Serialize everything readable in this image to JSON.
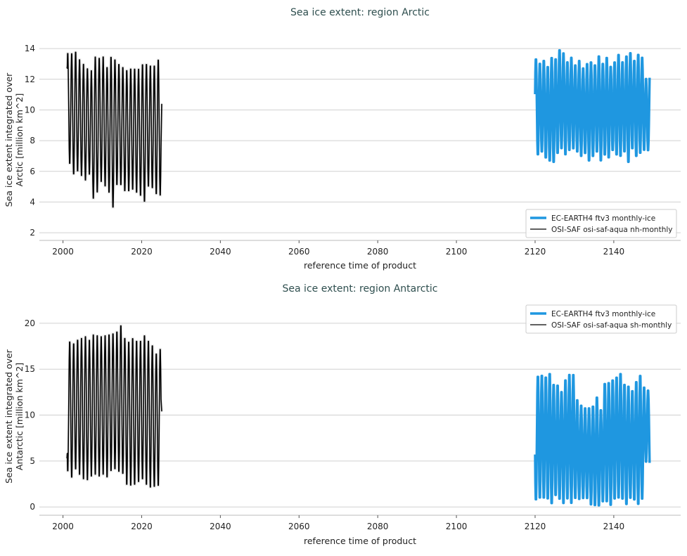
{
  "chart_data": [
    {
      "type": "line",
      "title": "Sea ice extent: region Arctic",
      "xlabel": "reference time of product",
      "ylabel_lines": [
        "Sea ice extent integrated over",
        "Arctic [million km^2]"
      ],
      "xlim": [
        1994,
        2157
      ],
      "ylim": [
        1.5,
        14.6
      ],
      "xticks": [
        2000,
        2020,
        2040,
        2060,
        2080,
        2100,
        2120,
        2140
      ],
      "yticks": [
        2,
        4,
        6,
        8,
        10,
        12,
        14
      ],
      "grid": "horizontal",
      "legend_position": "bottom-right",
      "hemisphere": "north",
      "series": [
        {
          "name": "EC-EARTH4 ftv3 monthly-ice",
          "color": "#1f97e0",
          "start_year": 2120,
          "end_value": 12.1,
          "annual_max": [
            13.4,
            13.1,
            13.3,
            12.9,
            13.5,
            13.4,
            14.0,
            13.8,
            13.2,
            13.5,
            13.0,
            13.3,
            12.8,
            13.1,
            13.2,
            13.0,
            13.6,
            13.1,
            13.5,
            12.9,
            13.2,
            13.7,
            13.2,
            13.6,
            13.8,
            13.3,
            13.7,
            13.5,
            12.1
          ],
          "annual_min": [
            7.0,
            7.2,
            6.8,
            6.6,
            6.5,
            7.1,
            7.4,
            7.0,
            7.3,
            7.4,
            7.2,
            6.9,
            7.1,
            6.6,
            6.9,
            7.2,
            6.6,
            7.0,
            6.8,
            7.3,
            7.0,
            6.9,
            7.2,
            6.5,
            7.4,
            6.9,
            7.1,
            7.3,
            7.3
          ]
        },
        {
          "name": "OSI-SAF osi-saf-aqua nh-monthly",
          "color": "#000000",
          "start_year": 2001,
          "start_value": 12.8,
          "end_value": 10.4,
          "annual_max": [
            13.8,
            13.8,
            13.9,
            13.4,
            13.1,
            12.8,
            12.7,
            13.6,
            13.5,
            13.6,
            12.9,
            13.6,
            13.4,
            13.1,
            12.9,
            12.7,
            12.8,
            12.8,
            12.8,
            13.1,
            13.1,
            13.0,
            13.0,
            13.4
          ],
          "annual_min": [
            6.4,
            5.7,
            5.9,
            5.6,
            5.3,
            5.7,
            4.1,
            4.5,
            5.2,
            4.9,
            4.5,
            3.5,
            5.0,
            5.0,
            4.6,
            4.6,
            4.7,
            4.5,
            4.3,
            3.9,
            4.9,
            4.8,
            4.4,
            4.3
          ]
        }
      ]
    },
    {
      "type": "line",
      "title": "Sea ice extent: region Antarctic",
      "xlabel": "reference time of product",
      "ylabel_lines": [
        "Sea ice extent integrated over",
        "Antarctic [million km^2]"
      ],
      "xlim": [
        1994,
        2157
      ],
      "ylim": [
        -0.9,
        20.6
      ],
      "xticks": [
        2000,
        2020,
        2040,
        2060,
        2080,
        2100,
        2120,
        2140
      ],
      "yticks": [
        0,
        5,
        10,
        15,
        20
      ],
      "grid": "horizontal",
      "legend_position": "top-right",
      "hemisphere": "south",
      "series": [
        {
          "name": "EC-EARTH4 ftv3 monthly-ice",
          "color": "#1f97e0",
          "start_year": 2120,
          "end_value": 4.8,
          "annual_max": [
            14.4,
            14.5,
            14.3,
            14.7,
            13.5,
            13.4,
            12.7,
            14.0,
            14.6,
            14.6,
            11.8,
            11.2,
            10.9,
            10.9,
            11.1,
            12.1,
            10.7,
            13.6,
            13.7,
            14.0,
            14.3,
            14.7,
            13.5,
            13.3,
            12.8,
            13.8,
            14.5,
            13.2,
            12.8
          ],
          "annual_min": [
            0.6,
            0.8,
            0.8,
            0.7,
            0.2,
            1.1,
            0.7,
            0.2,
            0.7,
            0.2,
            0.8,
            0.7,
            0.8,
            0.8,
            0.1,
            0.0,
            0.0,
            0.4,
            0.4,
            0.0,
            0.7,
            0.8,
            0.7,
            0.1,
            0.8,
            0.6,
            0.1,
            0.7,
            4.8
          ]
        },
        {
          "name": "OSI-SAF osi-saf-aqua sh-monthly",
          "color": "#000000",
          "start_year": 2001,
          "start_value": 5.3,
          "end_value": 10.4,
          "annual_max": [
            18.2,
            18.0,
            18.4,
            18.6,
            18.8,
            18.4,
            19.0,
            18.9,
            18.8,
            18.9,
            19.0,
            19.1,
            19.3,
            20.0,
            18.6,
            18.2,
            18.6,
            18.3,
            18.3,
            18.9,
            18.3,
            17.8,
            16.9,
            17.4
          ],
          "annual_min": [
            3.7,
            3.0,
            3.9,
            3.3,
            2.8,
            2.7,
            3.1,
            3.3,
            3.1,
            3.3,
            3.0,
            3.7,
            3.9,
            3.6,
            3.4,
            2.2,
            2.1,
            2.2,
            2.5,
            2.8,
            2.2,
            1.9,
            2.0,
            2.1
          ]
        }
      ]
    }
  ]
}
